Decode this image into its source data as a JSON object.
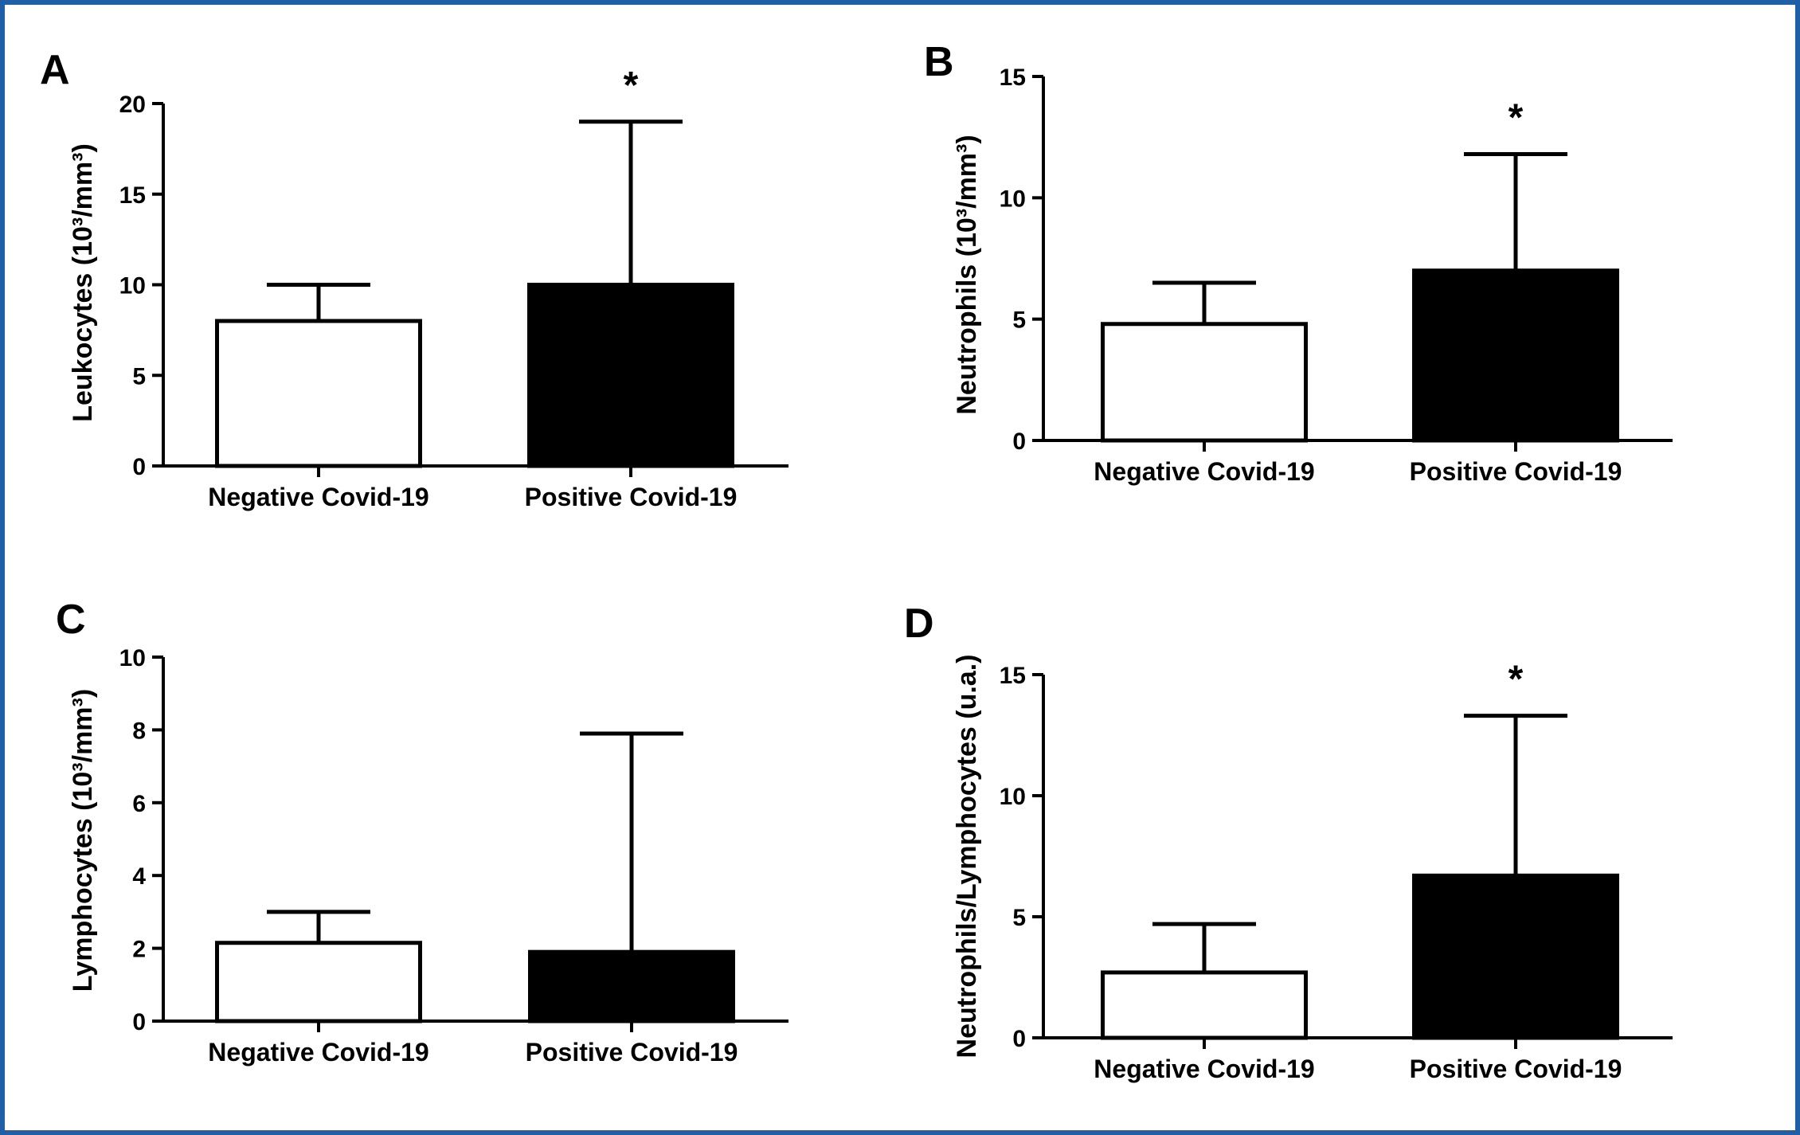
{
  "colors": {
    "frame": "#1f5fa8",
    "negative_fill": "#ffffff",
    "positive_fill": "#000000",
    "stroke": "#000000"
  },
  "panels": [
    {
      "letter": "A",
      "ylabel": "Leukocytes (10³/mm³)"
    },
    {
      "letter": "B",
      "ylabel": "Neutrophils (10³/mm³)"
    },
    {
      "letter": "C",
      "ylabel": "Lymphocytes (10³/mm³)"
    },
    {
      "letter": "D",
      "ylabel": "Neutrophils/Lymphocytes (u.a.)"
    }
  ],
  "chart_data": [
    {
      "type": "bar",
      "title": "A",
      "ylabel": "Leukocytes (10³/mm³)",
      "categories": [
        "Negative Covid-19",
        "Positive Covid-19"
      ],
      "values": [
        8.0,
        10.0
      ],
      "error_upper": [
        10.0,
        19.0
      ],
      "fills": [
        "#ffffff",
        "#000000"
      ],
      "ylim": [
        0,
        20
      ],
      "yticks": [
        0,
        5,
        10,
        15,
        20
      ],
      "significance": [
        "",
        "*"
      ]
    },
    {
      "type": "bar",
      "title": "B",
      "ylabel": "Neutrophils (10³/mm³)",
      "categories": [
        "Negative Covid-19",
        "Positive Covid-19"
      ],
      "values": [
        4.8,
        7.0
      ],
      "error_upper": [
        6.5,
        11.8
      ],
      "fills": [
        "#ffffff",
        "#000000"
      ],
      "ylim": [
        0,
        15
      ],
      "yticks": [
        0,
        5,
        10,
        15
      ],
      "significance": [
        "",
        "*"
      ]
    },
    {
      "type": "bar",
      "title": "C",
      "ylabel": "Lymphocytes (10³/mm³)",
      "categories": [
        "Negative Covid-19",
        "Positive Covid-19"
      ],
      "values": [
        2.15,
        1.9
      ],
      "error_upper": [
        3.0,
        7.9
      ],
      "fills": [
        "#ffffff",
        "#000000"
      ],
      "ylim": [
        0,
        10
      ],
      "yticks": [
        0,
        2,
        4,
        6,
        8,
        10
      ],
      "significance": [
        "",
        ""
      ]
    },
    {
      "type": "bar",
      "title": "D",
      "ylabel": "Neutrophils/Lymphocytes (u.a.)",
      "categories": [
        "Negative Covid-19",
        "Positive Covid-19"
      ],
      "values": [
        2.7,
        6.7
      ],
      "error_upper": [
        4.7,
        13.3
      ],
      "fills": [
        "#ffffff",
        "#000000"
      ],
      "ylim": [
        0,
        15
      ],
      "yticks": [
        0,
        5,
        10,
        15
      ],
      "significance": [
        "",
        "*"
      ]
    }
  ]
}
